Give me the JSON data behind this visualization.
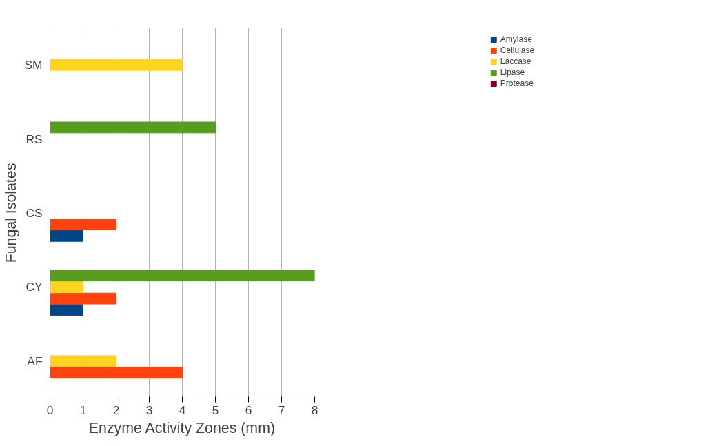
{
  "chart_data": {
    "type": "bar",
    "orientation": "horizontal",
    "xlabel": "Enzyme Activity Zones (mm)",
    "ylabel": "Fungal Isolates",
    "categories": [
      "SM",
      "RS",
      "CS",
      "CY",
      "AF"
    ],
    "series": [
      {
        "name": "Amylase",
        "color": "#004586",
        "values": [
          0,
          0,
          1,
          1,
          0
        ]
      },
      {
        "name": "Cellulase",
        "color": "#ff420e",
        "values": [
          0,
          0,
          2,
          2,
          4
        ]
      },
      {
        "name": "Laccase",
        "color": "#ffd320",
        "values": [
          4,
          0,
          0,
          1,
          2
        ]
      },
      {
        "name": "Lipase",
        "color": "#579d1c",
        "values": [
          0,
          5,
          0,
          8,
          0
        ]
      },
      {
        "name": "Protease",
        "color": "#7e0021",
        "values": [
          0,
          0,
          0,
          0,
          0
        ]
      }
    ],
    "xlim": [
      0,
      8
    ],
    "xticks": [
      0,
      1,
      2,
      3,
      4,
      5,
      6,
      7,
      8
    ],
    "grid": "x",
    "legend": "top right"
  }
}
